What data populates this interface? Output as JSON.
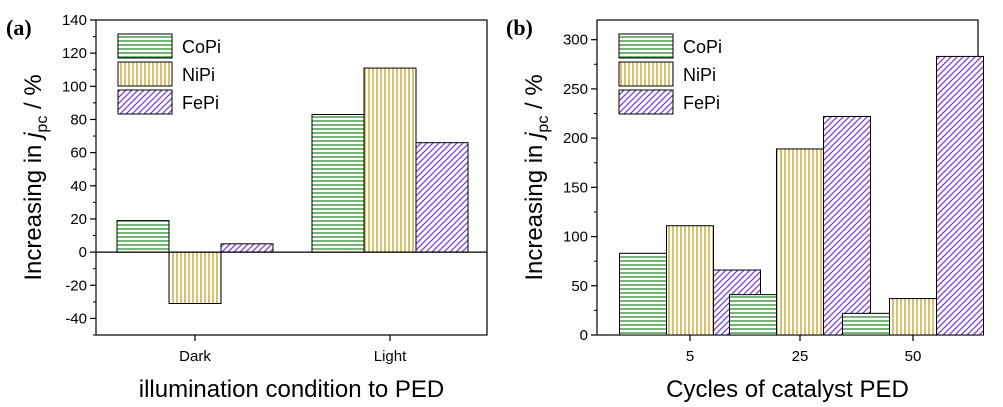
{
  "colors": {
    "CoPi": "#2e8b2e",
    "NiPi": "#c8a020",
    "FePi": "#7a3fd0"
  },
  "patterns": {
    "CoPi": "horizontal-lines",
    "NiPi": "vertical-lines",
    "FePi": "diagonal-lines"
  },
  "chart_data": [
    {
      "panel": "(a)",
      "type": "bar",
      "categories": [
        "Dark",
        "Light"
      ],
      "series": [
        {
          "name": "CoPi",
          "values": [
            19,
            83
          ]
        },
        {
          "name": "NiPi",
          "values": [
            -31,
            111
          ]
        },
        {
          "name": "FePi",
          "values": [
            5,
            66
          ]
        }
      ],
      "xlabel": "illumination condition to PED",
      "ylabel_main": "Increasing in ",
      "ylabel_var": "j",
      "ylabel_sub": "pc",
      "ylabel_unit": " / %",
      "ylim": [
        -50,
        140
      ],
      "yticks": [
        -40,
        -20,
        0,
        20,
        40,
        60,
        80,
        100,
        120,
        140
      ],
      "legend": [
        "CoPi",
        "NiPi",
        "FePi"
      ],
      "legend_position": "top-left",
      "zero_line": true
    },
    {
      "panel": "(b)",
      "type": "bar",
      "categories": [
        "5",
        "25",
        "50"
      ],
      "series": [
        {
          "name": "CoPi",
          "values": [
            83,
            41,
            22
          ]
        },
        {
          "name": "NiPi",
          "values": [
            111,
            189,
            37
          ]
        },
        {
          "name": "FePi",
          "values": [
            66,
            222,
            283
          ]
        }
      ],
      "xlabel": "Cycles of catalyst PED",
      "ylabel_main": "Increasing in ",
      "ylabel_var": "j",
      "ylabel_sub": "pc",
      "ylabel_unit": " / %",
      "ylim": [
        0,
        320
      ],
      "yticks": [
        0,
        50,
        100,
        150,
        200,
        250,
        300
      ],
      "legend": [
        "CoPi",
        "NiPi",
        "FePi"
      ],
      "legend_position": "top-left",
      "zero_line": false
    }
  ]
}
